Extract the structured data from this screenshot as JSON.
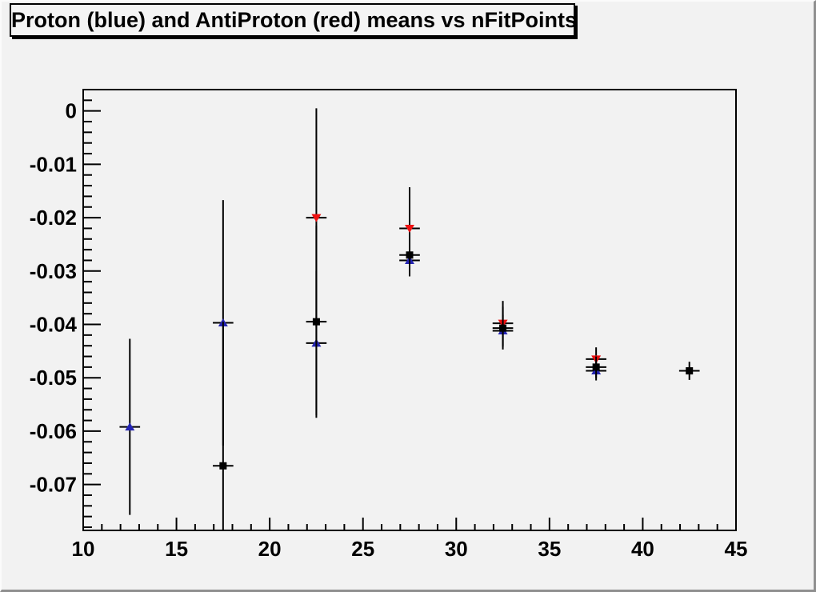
{
  "window": {
    "background_color": "#f2f2f2",
    "border_shadow_color": "#8f8f8f"
  },
  "chart_data": {
    "type": "scatter",
    "title": "Proton (blue) and AntiProton (red) means vs nFitPoints",
    "xlabel": "",
    "ylabel": "",
    "xlim": [
      10,
      45
    ],
    "ylim": [
      -0.0786,
      0.004
    ],
    "grid": false,
    "legend": "none (colors named in title)",
    "x_major_ticks": [
      10,
      15,
      20,
      25,
      30,
      35,
      40,
      45
    ],
    "x_major_labels": [
      "10",
      "15",
      "20",
      "25",
      "30",
      "35",
      "40",
      "45"
    ],
    "x_minor_step": 1,
    "y_major_ticks": [
      0,
      -0.01,
      -0.02,
      -0.03,
      -0.04,
      -0.05,
      -0.06,
      -0.07
    ],
    "y_major_labels": [
      "0",
      "-0.01",
      "-0.02",
      "-0.03",
      "-0.04",
      "-0.05",
      "-0.06",
      "-0.07"
    ],
    "y_minor_step": 0.002,
    "x_error_halfwidth": 0.55,
    "frame_color": "#000000",
    "series": [
      {
        "name": "proton",
        "marker": "triangle-up",
        "color": "#2424b2",
        "points": [
          {
            "x": 12.5,
            "y": -0.0592,
            "ey": 0.0165
          },
          {
            "x": 17.5,
            "y": -0.0397,
            "ey": 0.023
          },
          {
            "x": 22.5,
            "y": -0.0435,
            "ey": 0.0135
          },
          {
            "x": 27.5,
            "y": -0.028,
            "ey": 0.003
          },
          {
            "x": 32.5,
            "y": -0.0412,
            "ey": 0.003
          },
          {
            "x": 37.5,
            "y": -0.0487,
            "ey": 0.0018
          }
        ]
      },
      {
        "name": "antiproton",
        "marker": "triangle-down",
        "color": "#ee1111",
        "points": [
          {
            "x": 22.5,
            "y": -0.02,
            "ey": 0.0205
          },
          {
            "x": 27.5,
            "y": -0.022,
            "ey": 0.0077
          },
          {
            "x": 32.5,
            "y": -0.0398,
            "ey": 0.0042
          },
          {
            "x": 37.5,
            "y": -0.0465,
            "ey": 0.0022
          }
        ]
      },
      {
        "name": "combined-mean",
        "marker": "square",
        "color": "#000000",
        "points": [
          {
            "x": 17.5,
            "y": -0.0665,
            "ey": 0.027
          },
          {
            "x": 22.5,
            "y": -0.0395,
            "ey": 0.018
          },
          {
            "x": 27.5,
            "y": -0.027,
            "ey": 0.0035
          },
          {
            "x": 32.5,
            "y": -0.0407,
            "ey": 0.004
          },
          {
            "x": 37.5,
            "y": -0.048,
            "ey": 0.002
          },
          {
            "x": 42.5,
            "y": -0.0487,
            "ey": 0.0017
          }
        ]
      }
    ]
  }
}
